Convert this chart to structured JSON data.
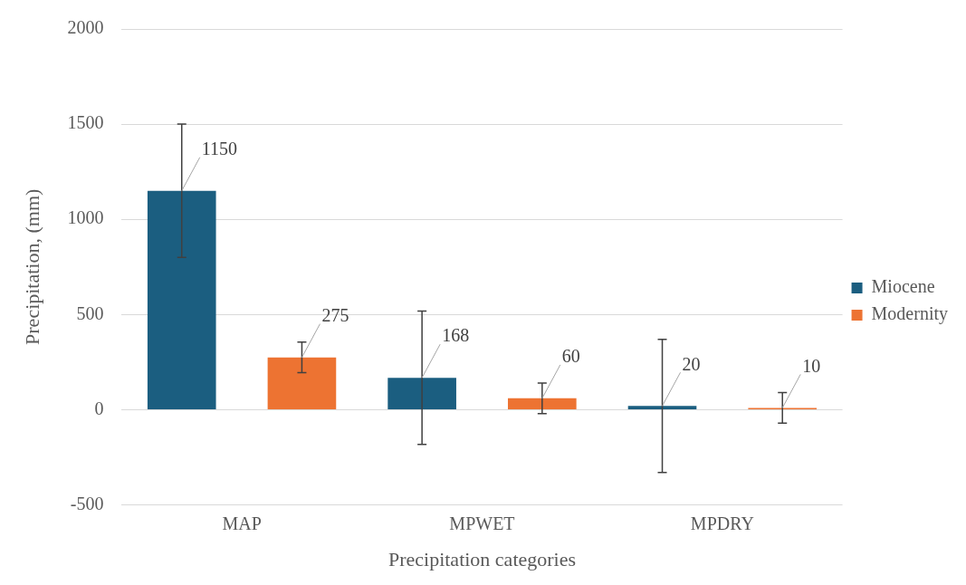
{
  "chart_data": {
    "type": "bar",
    "categories": [
      "MAP",
      "MPWET",
      "MPDRY"
    ],
    "xlabel": "Precipitation categories",
    "ylabel": "Precipitation, (mm)",
    "series": [
      {
        "name": "Miocene",
        "color": "#1b5e80",
        "values": [
          1150,
          168,
          20
        ],
        "errors": [
          350,
          350,
          350
        ]
      },
      {
        "name": "Modernity",
        "color": "#ed7332",
        "values": [
          275,
          60,
          10
        ],
        "errors": [
          80,
          80,
          80
        ]
      }
    ],
    "ylim": [
      -500,
      2000
    ],
    "yticks": [
      -500,
      0,
      500,
      1000,
      1500,
      2000
    ],
    "grid": "y",
    "legend": "right",
    "data_labels": true
  }
}
